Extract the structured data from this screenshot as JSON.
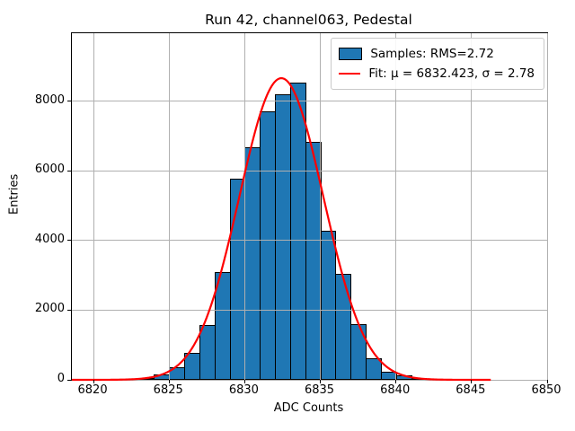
{
  "title": "Run 42, channel063, Pedestal",
  "chart_data": {
    "type": "bar",
    "subtype": "histogram",
    "title": "Run 42, channel063, Pedestal",
    "xlabel": "ADC Counts",
    "ylabel": "Entries",
    "xlim": [
      6818.57,
      6850
    ],
    "ylim": [
      0,
      9950
    ],
    "x_ticks": [
      6820,
      6825,
      6830,
      6835,
      6840,
      6845,
      6850
    ],
    "y_ticks": [
      0,
      2000,
      4000,
      6000,
      8000
    ],
    "grid": true,
    "legend_position": "upper right",
    "histogram": {
      "bin_width": 1,
      "bin_start": 6820,
      "bin_edges": [
        6820,
        6821,
        6822,
        6823,
        6824,
        6825,
        6826,
        6827,
        6828,
        6829,
        6830,
        6831,
        6832,
        6833,
        6834,
        6835,
        6836,
        6837,
        6838,
        6839,
        6840,
        6841,
        6842,
        6843,
        6844,
        6845,
        6846
      ],
      "counts": [
        0,
        5,
        15,
        55,
        155,
        350,
        775,
        1580,
        3100,
        5780,
        6670,
        7710,
        8210,
        8540,
        6830,
        4280,
        3040,
        1600,
        610,
        240,
        120,
        40,
        12,
        5,
        2,
        1
      ]
    },
    "fit_curve": {
      "type": "gaussian",
      "mu": 6832.423,
      "sigma": 2.78,
      "amplitude": 8660,
      "x_range": [
        6818.57,
        6846.3
      ]
    },
    "legend": {
      "entries": [
        {
          "label": "Samples: RMS=2.72",
          "swatch": "patch",
          "color": "#1f77b4"
        },
        {
          "label": "Fit: μ = 6832.423, σ = 2.78",
          "swatch": "line",
          "color": "#ff0000"
        }
      ]
    },
    "colors": {
      "bar_fill": "#1f77b4",
      "bar_edge": "#000000",
      "fit_line": "#ff0000",
      "grid": "#b0b0b0",
      "background": "#ffffff"
    }
  }
}
